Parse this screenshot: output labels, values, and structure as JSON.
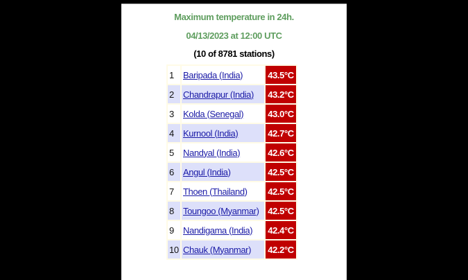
{
  "header": {
    "title": "Maximum temperature in 24h.",
    "datetime": "04/13/2023 at 12:00 UTC",
    "count": "(10 of 8781 stations)"
  },
  "colors": {
    "title": "#5f9e5f",
    "value_bg": "#c00000",
    "row_alt": "#dde0fa"
  },
  "rows": [
    {
      "rank": "1",
      "station": "Baripada (India)",
      "temp": "43.5°C"
    },
    {
      "rank": "2",
      "station": "Chandrapur (India)",
      "temp": "43.2°C"
    },
    {
      "rank": "3",
      "station": "Kolda (Senegal)",
      "temp": "43.0°C"
    },
    {
      "rank": "4",
      "station": "Kurnool (India)",
      "temp": "42.7°C"
    },
    {
      "rank": "5",
      "station": "Nandyal (India)",
      "temp": "42.6°C"
    },
    {
      "rank": "6",
      "station": "Angul (India)",
      "temp": "42.5°C"
    },
    {
      "rank": "7",
      "station": "Thoen (Thailand)",
      "temp": "42.5°C"
    },
    {
      "rank": "8",
      "station": "Toungoo (Myanmar)",
      "temp": "42.5°C"
    },
    {
      "rank": "9",
      "station": "Nandigama (India)",
      "temp": "42.4°C"
    },
    {
      "rank": "10",
      "station": "Chauk (Myanmar)",
      "temp": "42.2°C"
    }
  ]
}
